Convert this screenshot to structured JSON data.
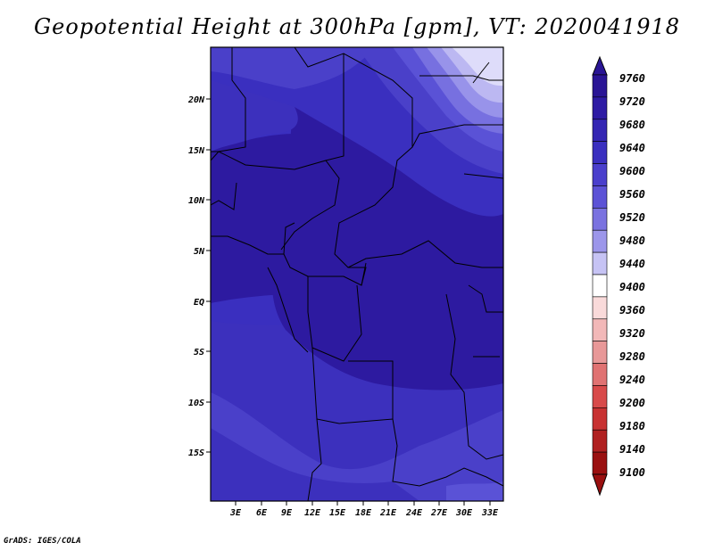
{
  "title": "Geopotential Height at 300hPa [gpm], VT: 2020041918",
  "credit": "GrADS: IGES/COLA",
  "lat_labels": [
    "20N",
    "15N",
    "10N",
    "5N",
    "EQ",
    "5S",
    "10S",
    "15S"
  ],
  "lon_labels": [
    "3E",
    "6E",
    "9E",
    "12E",
    "15E",
    "18E",
    "21E",
    "24E",
    "27E",
    "30E",
    "33E"
  ],
  "legend_labels": [
    "9760",
    "9720",
    "9680",
    "9640",
    "9600",
    "9560",
    "9520",
    "9480",
    "9440",
    "9400",
    "9360",
    "9320",
    "9280",
    "9240",
    "9200",
    "9180",
    "9140",
    "9100"
  ],
  "legend_colors": [
    "#2a1595",
    "#2e1ba4",
    "#3426b3",
    "#3a2fbf",
    "#4a3fcc",
    "#5c52d6",
    "#7a72e0",
    "#9c96ea",
    "#c6c3f4",
    "#ffffff",
    "#f9dada",
    "#f2b8b8",
    "#e89898",
    "#e07272",
    "#d84a4a",
    "#c83232",
    "#b02020",
    "#9a1010"
  ],
  "map": {
    "domain_lon": [
      0,
      34.5
    ],
    "domain_lat": [
      -19.5,
      25
    ],
    "field_shades": {
      "h9760": "#2d1aa0",
      "h9720": "#3526b0",
      "h9680": "#3c30bd",
      "h9640": "#4a40c9",
      "h9600": "#5a52d6",
      "h9560": "#7770e0",
      "h9520": "#9893ea",
      "h9480": "#bcb8f2",
      "h9440": "#dedcfa"
    }
  }
}
